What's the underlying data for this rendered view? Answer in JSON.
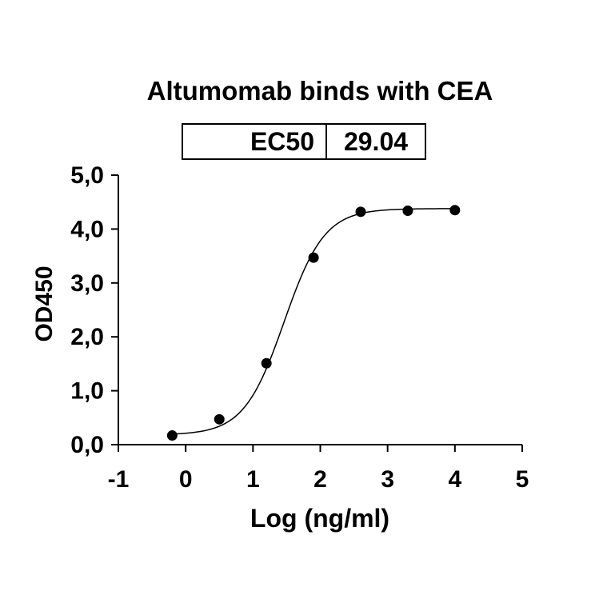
{
  "chart_data": {
    "type": "scatter",
    "title": "Altumomab binds with CEA",
    "ec50_label": "EC50",
    "ec50_value": "29.04",
    "xlabel": "Log (ng/ml)",
    "ylabel": "OD450",
    "xlim": [
      -1,
      5
    ],
    "ylim": [
      0,
      5
    ],
    "x_ticks": [
      "-1",
      "0",
      "1",
      "2",
      "3",
      "4",
      "5"
    ],
    "y_ticks": [
      "0,0",
      "1,0",
      "2,0",
      "3,0",
      "4,0",
      "5,0"
    ],
    "points": [
      {
        "x": -0.2,
        "y": 0.17
      },
      {
        "x": 0.5,
        "y": 0.47
      },
      {
        "x": 1.2,
        "y": 1.51
      },
      {
        "x": 1.9,
        "y": 3.47
      },
      {
        "x": 2.6,
        "y": 4.32
      },
      {
        "x": 3.3,
        "y": 4.34
      },
      {
        "x": 4.0,
        "y": 4.35
      }
    ],
    "fit": {
      "type": "4PL sigmoid",
      "bottom": 0.18,
      "top": 4.38,
      "log_ec50": 1.463,
      "hill": 1.45,
      "x_range": [
        -0.2,
        4.0
      ]
    },
    "grid": false,
    "legend": "none"
  }
}
